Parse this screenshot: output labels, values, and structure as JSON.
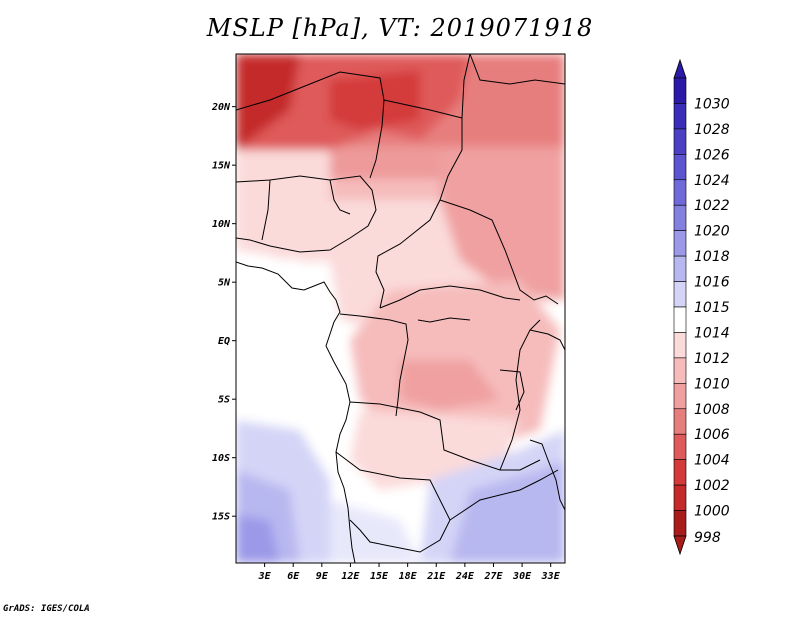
{
  "title": "MSLP [hPa], VT: 2019071918",
  "credit": "GrADS: IGES/COLA",
  "map": {
    "lat_range": [
      -19,
      24.5
    ],
    "lon_range": [
      0,
      34.5
    ],
    "lat_ticks": [
      {
        "lat": 20,
        "label": "20N"
      },
      {
        "lat": 15,
        "label": "15N"
      },
      {
        "lat": 10,
        "label": "10N"
      },
      {
        "lat": 5,
        "label": "5N"
      },
      {
        "lat": 0,
        "label": "EQ"
      },
      {
        "lat": -5,
        "label": "5S"
      },
      {
        "lat": -10,
        "label": "10S"
      },
      {
        "lat": -15,
        "label": "15S"
      }
    ],
    "lon_ticks": [
      {
        "lon": 3,
        "label": "3E"
      },
      {
        "lon": 6,
        "label": "6E"
      },
      {
        "lon": 9,
        "label": "9E"
      },
      {
        "lon": 12,
        "label": "12E"
      },
      {
        "lon": 15,
        "label": "15E"
      },
      {
        "lon": 18,
        "label": "18E"
      },
      {
        "lon": 21,
        "label": "21E"
      },
      {
        "lon": 24,
        "label": "24E"
      },
      {
        "lon": 27,
        "label": "27E"
      },
      {
        "lon": 30,
        "label": "30E"
      },
      {
        "lon": 33,
        "label": "33E"
      }
    ]
  },
  "colorbar": {
    "labels": [
      "1030",
      "1028",
      "1026",
      "1024",
      "1022",
      "1020",
      "1018",
      "1016",
      "1015",
      "1014",
      "1012",
      "1010",
      "1008",
      "1006",
      "1004",
      "1002",
      "1000",
      "998"
    ],
    "colors": [
      "#2b1aa8",
      "#3a2db8",
      "#4b40c4",
      "#5c55cf",
      "#6f6ad8",
      "#8480e0",
      "#9c9ae8",
      "#b8b8f0",
      "#d4d4f7",
      "#ffffff",
      "#fbdada",
      "#f6bcbc",
      "#f0a0a0",
      "#e77e7e",
      "#df5a5a",
      "#d43a3a",
      "#c42a2a",
      "#a81c1c"
    ]
  }
}
